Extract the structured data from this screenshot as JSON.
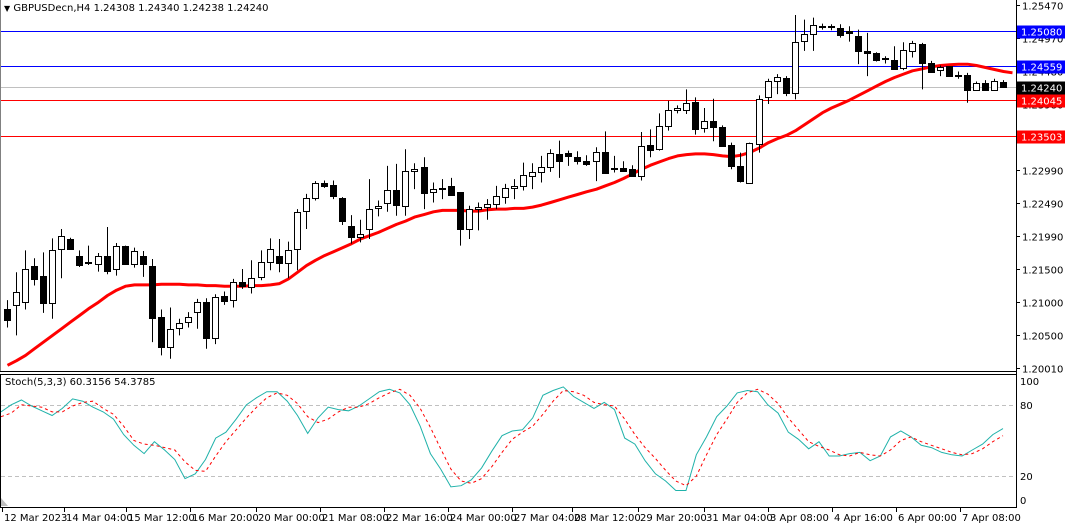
{
  "header": {
    "symbol_line": "GBPUSDecn,H4  1.24308 1.24340 1.24238 1.24240",
    "symbol": "GBPUSDecn",
    "timeframe": "H4",
    "open": "1.24308",
    "high": "1.24340",
    "low": "1.24238",
    "close": "1.24240"
  },
  "indicator": {
    "label": "Stoch(5,3,3) 60.3156 54.3785",
    "name": "Stoch(5,3,3)",
    "main_value": "60.3156",
    "signal_value": "54.3785"
  },
  "colors": {
    "background": "#ffffff",
    "axis": "#000000",
    "bull_body": "#ffffff",
    "bear_body": "#000000",
    "ma_line": "#ff0000",
    "blue_level": "#0000ff",
    "red_level": "#ff0000",
    "current_price_line": "#c0c0c0",
    "stoch_main": "#20b2aa",
    "stoch_signal": "#ff0000",
    "stoch_levels": "#c0c0c0"
  },
  "chart_data": [
    {
      "type": "candlestick",
      "title": "GBPUSDecn,H4",
      "ylim": [
        1.2001,
        1.2547
      ],
      "y_ticks": [
        "1.25470",
        "1.24970",
        "1.24480",
        "1.23980",
        "1.22990",
        "1.22490",
        "1.21990",
        "1.21500",
        "1.21000",
        "1.20500",
        "1.20010"
      ],
      "x_ticks": [
        "12 Mar 2023",
        "14 Mar 04:00",
        "15 Mar 12:00",
        "16 Mar 20:00",
        "20 Mar 00:00",
        "21 Mar 08:00",
        "22 Mar 16:00",
        "24 Mar 00:00",
        "27 Mar 04:00",
        "28 Mar 12:00",
        "29 Mar 20:00",
        "31 Mar 04:00",
        "3 Apr 08:00",
        "4 Apr 16:00",
        "6 Apr 00:00",
        "7 Apr 08:00"
      ],
      "price_levels": [
        {
          "value": "1.25080",
          "color": "#0000ff"
        },
        {
          "value": "1.24559",
          "color": "#0000ff"
        },
        {
          "value": "1.24240",
          "color": "#000000",
          "kind": "current"
        },
        {
          "value": "1.24045",
          "color": "#ff0000"
        },
        {
          "value": "1.23503",
          "color": "#ff0000"
        }
      ],
      "candles": [
        [
          1.2089,
          1.2103,
          1.2062,
          1.2073
        ],
        [
          1.2095,
          1.2145,
          1.205,
          1.2115
        ],
        [
          1.2101,
          1.2178,
          1.2089,
          1.215
        ],
        [
          1.2155,
          1.2166,
          1.2125,
          1.2135
        ],
        [
          1.2139,
          1.2175,
          1.2084,
          1.2099
        ],
        [
          1.21,
          1.2196,
          1.2075,
          1.2179
        ],
        [
          1.2179,
          1.221,
          1.2136,
          1.2199
        ],
        [
          1.2195,
          1.2197,
          1.218,
          1.218
        ],
        [
          1.217,
          1.2178,
          1.2153,
          1.2156
        ],
        [
          1.2158,
          1.2185,
          1.2156,
          1.216
        ],
        [
          1.2158,
          1.2174,
          1.2146,
          1.217
        ],
        [
          1.217,
          1.2213,
          1.2142,
          1.2148
        ],
        [
          1.215,
          1.2189,
          1.214,
          1.2185
        ],
        [
          1.2185,
          1.2185,
          1.2158,
          1.2158
        ],
        [
          1.2157,
          1.2182,
          1.2152,
          1.2177
        ],
        [
          1.217,
          1.2177,
          1.2138,
          1.2158
        ],
        [
          1.2155,
          1.2165,
          1.204,
          1.2077
        ],
        [
          1.2077,
          1.2089,
          1.202,
          1.2032
        ],
        [
          1.2033,
          1.2092,
          1.2015,
          1.206
        ],
        [
          1.206,
          1.2075,
          1.205,
          1.2068
        ],
        [
          1.207,
          1.2085,
          1.2062,
          1.2077
        ],
        [
          1.2085,
          1.2105,
          1.206,
          1.21
        ],
        [
          1.21,
          1.2106,
          1.203,
          1.2046
        ],
        [
          1.2046,
          1.2112,
          1.2037,
          1.2108
        ],
        [
          1.211,
          1.2116,
          1.2096,
          1.2103
        ],
        [
          1.2103,
          1.2135,
          1.2092,
          1.213
        ],
        [
          1.2131,
          1.215,
          1.212,
          1.2125
        ],
        [
          1.2124,
          1.2163,
          1.2113,
          1.2137
        ],
        [
          1.2138,
          1.2178,
          1.2133,
          1.2161
        ],
        [
          1.216,
          1.2196,
          1.2148,
          1.218
        ],
        [
          1.217,
          1.2195,
          1.2145,
          1.216
        ],
        [
          1.216,
          1.2191,
          1.2136,
          1.2179
        ],
        [
          1.2179,
          1.224,
          1.2148,
          1.2235
        ],
        [
          1.2236,
          1.2263,
          1.221,
          1.2256
        ],
        [
          1.2257,
          1.2282,
          1.2253,
          1.228
        ],
        [
          1.228,
          1.2283,
          1.2272,
          1.2275
        ],
        [
          1.2276,
          1.2283,
          1.2255,
          1.226
        ],
        [
          1.2256,
          1.2258,
          1.2216,
          1.2222
        ],
        [
          1.2215,
          1.2231,
          1.2188,
          1.2198
        ],
        [
          1.2198,
          1.2224,
          1.219,
          1.2203
        ],
        [
          1.221,
          1.2285,
          1.2195,
          1.224
        ],
        [
          1.2242,
          1.2253,
          1.2229,
          1.2245
        ],
        [
          1.2248,
          1.2305,
          1.2236,
          1.2268
        ],
        [
          1.2268,
          1.2308,
          1.223,
          1.2245
        ],
        [
          1.2245,
          1.233,
          1.223,
          1.2297
        ],
        [
          1.2297,
          1.2309,
          1.227,
          1.23
        ],
        [
          1.2304,
          1.2318,
          1.224,
          1.2265
        ],
        [
          1.2265,
          1.228,
          1.225,
          1.227
        ],
        [
          1.227,
          1.2285,
          1.2255,
          1.2272
        ],
        [
          1.2275,
          1.2287,
          1.2263,
          1.2262
        ],
        [
          1.2265,
          1.2265,
          1.2185,
          1.221
        ],
        [
          1.221,
          1.2245,
          1.2195,
          1.224
        ],
        [
          1.224,
          1.225,
          1.2208,
          1.2243
        ],
        [
          1.2242,
          1.2255,
          1.2224,
          1.2247
        ],
        [
          1.2247,
          1.2275,
          1.224,
          1.2259
        ],
        [
          1.2258,
          1.2278,
          1.2248,
          1.2272
        ],
        [
          1.2272,
          1.2285,
          1.2255,
          1.2275
        ],
        [
          1.2275,
          1.231,
          1.2268,
          1.2292
        ],
        [
          1.229,
          1.2309,
          1.227,
          1.2296
        ],
        [
          1.2296,
          1.232,
          1.228,
          1.2303
        ],
        [
          1.2304,
          1.233,
          1.2296,
          1.2325
        ],
        [
          1.2323,
          1.2343,
          1.2287,
          1.2313
        ],
        [
          1.2324,
          1.2328,
          1.2305,
          1.2319
        ],
        [
          1.2318,
          1.2327,
          1.2307,
          1.2312
        ],
        [
          1.2312,
          1.2321,
          1.2305,
          1.2307
        ],
        [
          1.2312,
          1.2333,
          1.2282,
          1.2326
        ],
        [
          1.2326,
          1.2357,
          1.23,
          1.2295
        ],
        [
          1.2301,
          1.232,
          1.2295,
          1.2302
        ],
        [
          1.2302,
          1.2312,
          1.23,
          1.2298
        ],
        [
          1.23,
          1.2306,
          1.229,
          1.229
        ],
        [
          1.229,
          1.2356,
          1.2283,
          1.2335
        ],
        [
          1.2336,
          1.236,
          1.2318,
          1.2328
        ],
        [
          1.233,
          1.2384,
          1.2328,
          1.2365
        ],
        [
          1.2365,
          1.2403,
          1.2358,
          1.2389
        ],
        [
          1.2389,
          1.2396,
          1.2384,
          1.2392
        ],
        [
          1.239,
          1.242,
          1.2383,
          1.24
        ],
        [
          1.2401,
          1.2408,
          1.2352,
          1.236
        ],
        [
          1.2362,
          1.2392,
          1.2355,
          1.2372
        ],
        [
          1.2373,
          1.2406,
          1.2342,
          1.2364
        ],
        [
          1.2364,
          1.2366,
          1.2335,
          1.2336
        ],
        [
          1.2336,
          1.234,
          1.23,
          1.2305
        ],
        [
          1.2305,
          1.2325,
          1.228,
          1.2283
        ],
        [
          1.2279,
          1.234,
          1.2279,
          1.2339
        ],
        [
          1.2338,
          1.2411,
          1.2325,
          1.2406
        ],
        [
          1.2408,
          1.2436,
          1.2398,
          1.2432
        ],
        [
          1.2432,
          1.2443,
          1.2413,
          1.2438
        ],
        [
          1.2437,
          1.244,
          1.241,
          1.2415
        ],
        [
          1.2415,
          1.2532,
          1.2405,
          1.2492
        ],
        [
          1.2492,
          1.2525,
          1.2478,
          1.2503
        ],
        [
          1.2503,
          1.2528,
          1.2478,
          1.2517
        ],
        [
          1.2515,
          1.2519,
          1.251,
          1.2516
        ],
        [
          1.2515,
          1.2518,
          1.2509,
          1.2515
        ],
        [
          1.2513,
          1.2518,
          1.2498,
          1.2503
        ],
        [
          1.2508,
          1.2515,
          1.2492,
          1.2505
        ],
        [
          1.25,
          1.251,
          1.2458,
          1.2478
        ],
        [
          1.2478,
          1.2505,
          1.244,
          1.2475
        ],
        [
          1.2475,
          1.2476,
          1.2462,
          1.2464
        ],
        [
          1.2465,
          1.247,
          1.2459,
          1.2467
        ],
        [
          1.2465,
          1.2485,
          1.245,
          1.2452
        ],
        [
          1.2453,
          1.2491,
          1.2449,
          1.248
        ],
        [
          1.2478,
          1.2493,
          1.2468,
          1.249
        ],
        [
          1.2488,
          1.249,
          1.242,
          1.246
        ],
        [
          1.246,
          1.2463,
          1.2448,
          1.2447
        ],
        [
          1.2448,
          1.2456,
          1.244,
          1.2453
        ],
        [
          1.2455,
          1.2455,
          1.2439,
          1.244
        ],
        [
          1.244,
          1.2447,
          1.2436,
          1.2441
        ],
        [
          1.2442,
          1.2445,
          1.24,
          1.2419
        ],
        [
          1.242,
          1.2432,
          1.242,
          1.243
        ],
        [
          1.243,
          1.2434,
          1.2421,
          1.2419
        ],
        [
          1.242,
          1.2436,
          1.242,
          1.2433
        ],
        [
          1.2431,
          1.2434,
          1.2424,
          1.2424
        ]
      ],
      "ma_series_name": "Moving Average (red)",
      "ma": [
        1.2005,
        1.2012,
        1.202,
        1.203,
        1.204,
        1.205,
        1.206,
        1.207,
        1.208,
        1.209,
        1.21,
        1.211,
        1.2118,
        1.2124,
        1.2126,
        1.2126,
        1.2126,
        1.2127,
        1.2127,
        1.2127,
        1.2126,
        1.2126,
        1.2125,
        1.2125,
        1.2124,
        1.2124,
        1.2124,
        1.2125,
        1.2125,
        1.2126,
        1.2128,
        1.2135,
        1.2145,
        1.2155,
        1.2163,
        1.217,
        1.2176,
        1.2182,
        1.2188,
        1.2195,
        1.22,
        1.2205,
        1.2211,
        1.2217,
        1.2222,
        1.2228,
        1.2232,
        1.2236,
        1.2238,
        1.2238,
        1.2238,
        1.2237,
        1.2237,
        1.2239,
        1.224,
        1.224,
        1.2241,
        1.2241,
        1.2243,
        1.2246,
        1.225,
        1.2254,
        1.2258,
        1.2262,
        1.2266,
        1.227,
        1.2275,
        1.228,
        1.2286,
        1.2293,
        1.23,
        1.2306,
        1.2311,
        1.2316,
        1.232,
        1.2322,
        1.2323,
        1.2323,
        1.2322,
        1.232,
        1.2319,
        1.2321,
        1.2325,
        1.2332,
        1.234,
        1.2346,
        1.2351,
        1.2358,
        1.2367,
        1.2376,
        1.2385,
        1.2392,
        1.2398,
        1.2404,
        1.2411,
        1.2418,
        1.2425,
        1.2432,
        1.2438,
        1.2443,
        1.2448,
        1.2451,
        1.2454,
        1.2456,
        1.2457,
        1.2458,
        1.2458,
        1.2456,
        1.2453,
        1.245,
        1.2447,
        1.2445
      ]
    },
    {
      "type": "line",
      "title": "Stoch(5,3,3)",
      "ylim": [
        0,
        100
      ],
      "y_ticks": [
        "100",
        "80",
        "20",
        "0"
      ],
      "levels": [
        80,
        20
      ],
      "series": [
        {
          "name": "Main %K",
          "color": "#20b2aa",
          "values": [
            74,
            80,
            84,
            79,
            75,
            71,
            77,
            85,
            83,
            78,
            74,
            68,
            55,
            46,
            39,
            49,
            42,
            34,
            18,
            22,
            34,
            52,
            57,
            68,
            80,
            86,
            91,
            91,
            83,
            71,
            56,
            69,
            78,
            76,
            75,
            79,
            85,
            91,
            93,
            90,
            80,
            62,
            39,
            26,
            11,
            12,
            17,
            27,
            41,
            54,
            58,
            59,
            69,
            88,
            92,
            95,
            87,
            82,
            77,
            82,
            76,
            52,
            47,
            33,
            22,
            16,
            8,
            8,
            38,
            53,
            70,
            79,
            90,
            92,
            91,
            80,
            73,
            57,
            51,
            43,
            49,
            37,
            37,
            39,
            40,
            33,
            37,
            53,
            58,
            53,
            46,
            44,
            40,
            38,
            37,
            42,
            47,
            55,
            60
          ]
        },
        {
          "name": "Signal %D",
          "color": "#ff0000",
          "values": [
            70,
            73,
            80,
            79,
            78,
            74,
            74,
            79,
            82,
            83,
            77,
            72,
            62,
            50,
            47,
            46,
            44,
            42,
            32,
            25,
            24,
            37,
            49,
            59,
            69,
            78,
            86,
            90,
            88,
            81,
            70,
            65,
            68,
            74,
            78,
            78,
            81,
            86,
            90,
            93,
            88,
            77,
            61,
            43,
            26,
            16,
            14,
            18,
            28,
            40,
            51,
            57,
            62,
            72,
            83,
            92,
            91,
            88,
            82,
            80,
            79,
            68,
            55,
            44,
            35,
            25,
            16,
            12,
            20,
            38,
            55,
            68,
            82,
            90,
            93,
            89,
            81,
            69,
            59,
            49,
            45,
            42,
            38,
            37,
            40,
            38,
            37,
            42,
            50,
            53,
            49,
            46,
            43,
            40,
            38,
            39,
            43,
            49,
            54
          ]
        }
      ]
    }
  ]
}
